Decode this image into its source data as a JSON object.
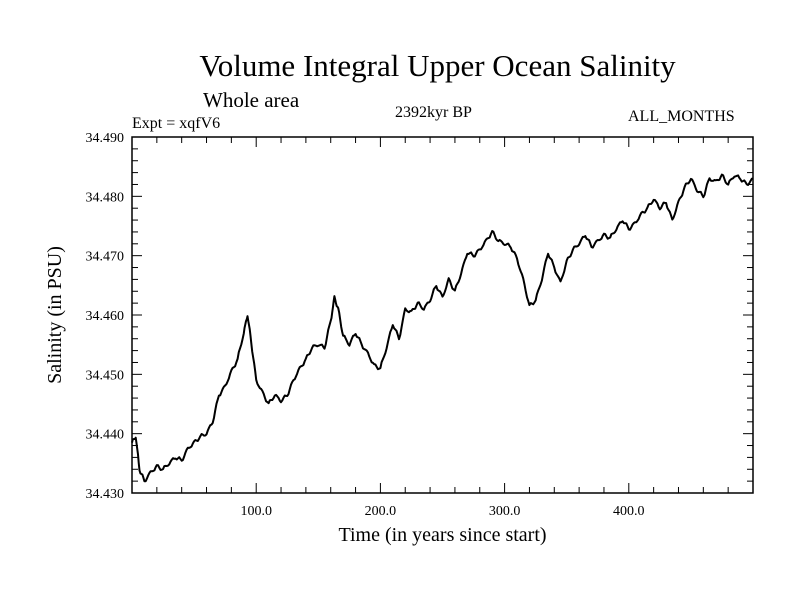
{
  "chart_data": {
    "type": "line",
    "title": "Volume Integral Upper Ocean Salinity",
    "subtitle": "Whole area",
    "expt_label": "Expt = xqfV6",
    "period_label": "2392kyr BP",
    "months_label": "ALL_MONTHS",
    "xlabel": "Time (in years since start)",
    "ylabel": "Salinity (in PSU)",
    "xlim": [
      0,
      500
    ],
    "ylim": [
      34.43,
      34.49
    ],
    "x_ticks": [
      100,
      200,
      300,
      400
    ],
    "x_tick_labels": [
      "100.0",
      "200.0",
      "300.0",
      "400.0"
    ],
    "y_ticks": [
      34.43,
      34.44,
      34.45,
      34.46,
      34.47,
      34.48,
      34.49
    ],
    "y_tick_labels": [
      "34.430",
      "34.440",
      "34.450",
      "34.460",
      "34.470",
      "34.480",
      "34.490"
    ],
    "grid": false,
    "line_color": "#000000",
    "series": [
      {
        "name": "salinity",
        "x": [
          0,
          3,
          6,
          10,
          15,
          20,
          25,
          30,
          35,
          40,
          45,
          50,
          55,
          60,
          65,
          70,
          75,
          80,
          85,
          90,
          93,
          96,
          100,
          105,
          110,
          115,
          120,
          125,
          130,
          135,
          140,
          145,
          150,
          155,
          160,
          163,
          166,
          170,
          175,
          180,
          185,
          190,
          195,
          200,
          205,
          210,
          215,
          220,
          225,
          230,
          235,
          240,
          245,
          250,
          255,
          260,
          265,
          270,
          275,
          280,
          285,
          290,
          295,
          300,
          305,
          310,
          315,
          320,
          325,
          330,
          335,
          340,
          345,
          350,
          355,
          360,
          365,
          370,
          375,
          380,
          385,
          390,
          395,
          400,
          405,
          410,
          415,
          420,
          425,
          430,
          435,
          440,
          445,
          450,
          455,
          460,
          465,
          470,
          475,
          480,
          485,
          490,
          495,
          500
        ],
        "y": [
          34.4385,
          34.4395,
          34.434,
          34.432,
          34.4335,
          34.4345,
          34.434,
          34.435,
          34.436,
          34.4355,
          34.4375,
          34.4385,
          34.4395,
          34.44,
          34.442,
          34.4465,
          34.448,
          34.4505,
          34.4525,
          34.457,
          34.46,
          34.4555,
          34.449,
          34.447,
          34.445,
          34.4465,
          34.4455,
          34.4465,
          34.449,
          34.451,
          34.4525,
          34.4545,
          34.455,
          34.4545,
          34.459,
          34.463,
          34.461,
          34.4565,
          34.455,
          34.457,
          34.455,
          34.4535,
          34.4515,
          34.451,
          34.4545,
          34.4585,
          34.456,
          34.461,
          34.4605,
          34.462,
          34.461,
          34.4625,
          34.465,
          34.463,
          34.466,
          34.464,
          34.467,
          34.4705,
          34.47,
          34.471,
          34.4725,
          34.474,
          34.4725,
          34.472,
          34.4715,
          34.4695,
          34.466,
          34.4615,
          34.4625,
          34.466,
          34.4705,
          34.468,
          34.4655,
          34.469,
          34.471,
          34.472,
          34.4735,
          34.4715,
          34.4725,
          34.4735,
          34.473,
          34.4745,
          34.476,
          34.4745,
          34.4755,
          34.477,
          34.478,
          34.4795,
          34.478,
          34.479,
          34.476,
          34.479,
          34.4815,
          34.483,
          34.481,
          34.48,
          34.483,
          34.4825,
          34.4835,
          34.482,
          34.4835,
          34.483,
          34.482,
          34.483
        ]
      }
    ]
  }
}
